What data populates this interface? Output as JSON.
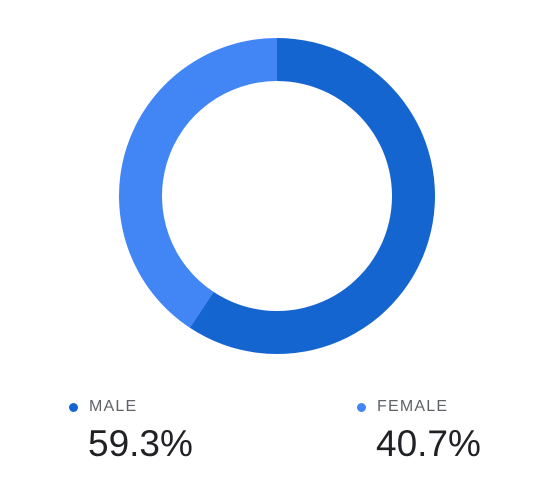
{
  "chart_data": {
    "type": "pie",
    "variant": "donut",
    "slices": [
      {
        "label": "MALE",
        "value": 59.3,
        "display": "59.3%",
        "color": "#1565d0"
      },
      {
        "label": "FEMALE",
        "value": 40.7,
        "display": "40.7%",
        "color": "#4285f4"
      }
    ],
    "legend_placement": "bottom"
  }
}
